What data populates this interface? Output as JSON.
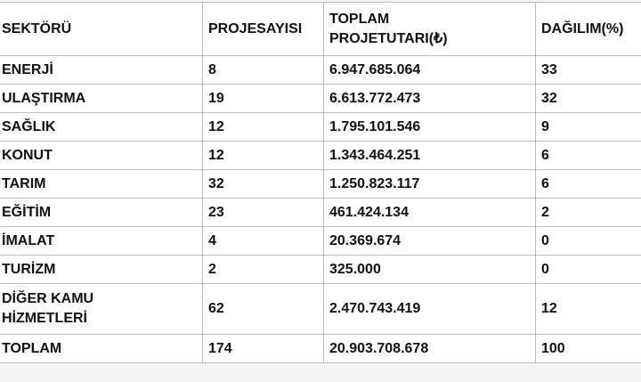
{
  "table": {
    "headers": {
      "sector": "SEKTÖRÜ",
      "project_count": "PROJESAYISI",
      "total_line1": "TOPLAM",
      "total_line2": "PROJETUTARI(₺)",
      "distribution": "DAĞILIM(%)"
    },
    "rows": [
      {
        "sector": "ENERJİ",
        "count": "8",
        "amount": "6.947.685.064",
        "share": "33"
      },
      {
        "sector": "ULAŞTIRMA",
        "count": "19",
        "amount": "6.613.772.473",
        "share": "32"
      },
      {
        "sector": "SAĞLIK",
        "count": "12",
        "amount": "1.795.101.546",
        "share": "9"
      },
      {
        "sector": "KONUT",
        "count": "12",
        "amount": "1.343.464.251",
        "share": "6"
      },
      {
        "sector": "TARIM",
        "count": "32",
        "amount": "1.250.823.117",
        "share": "6"
      },
      {
        "sector": "EĞİTİM",
        "count": "23",
        "amount": "461.424.134",
        "share": "2"
      },
      {
        "sector": "İMALAT",
        "count": "4",
        "amount": "20.369.674",
        "share": "0"
      },
      {
        "sector": "TURİZM",
        "count": "2",
        "amount": "325.000",
        "share": "0"
      },
      {
        "sector_line1": "DİĞER KAMU",
        "sector_line2": "HİZMETLERİ",
        "count": "62",
        "amount": "2.470.743.419",
        "share": "12"
      }
    ],
    "total": {
      "sector": "TOPLAM",
      "count": "174",
      "amount": "20.903.708.678",
      "share": "100"
    }
  }
}
